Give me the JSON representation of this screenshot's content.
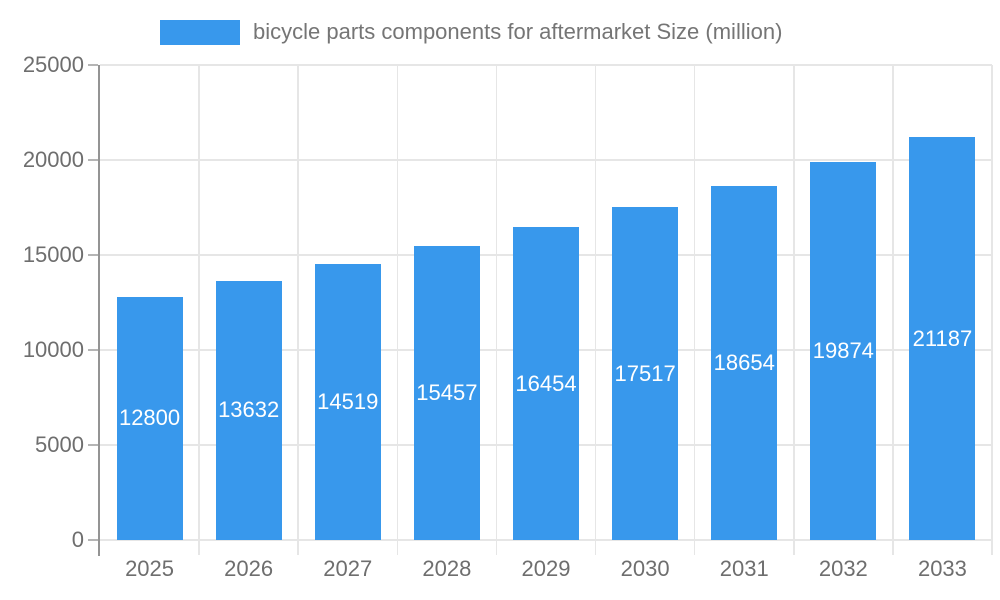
{
  "legend": {
    "label": "bicycle parts components for aftermarket Size (million)",
    "swatch_color": "#3898EC"
  },
  "chart_data": {
    "type": "bar",
    "title": "bicycle parts components for aftermarket Size (million)",
    "categories": [
      "2025",
      "2026",
      "2027",
      "2028",
      "2029",
      "2030",
      "2031",
      "2032",
      "2033"
    ],
    "values": [
      12800,
      13632,
      14519,
      15457,
      16454,
      17517,
      18654,
      19874,
      21187
    ],
    "xlabel": "",
    "ylabel": "",
    "ylim": [
      0,
      25000
    ],
    "yticks": [
      0,
      5000,
      10000,
      15000,
      20000,
      25000
    ],
    "grid": true,
    "legend_position": "top",
    "bar_color": "#3898EC",
    "value_label_color": "#ffffff",
    "value_label_position": "inside-middle",
    "axis_text_color": "#6e6e6e",
    "gridline_color": "#e6e6e6"
  }
}
